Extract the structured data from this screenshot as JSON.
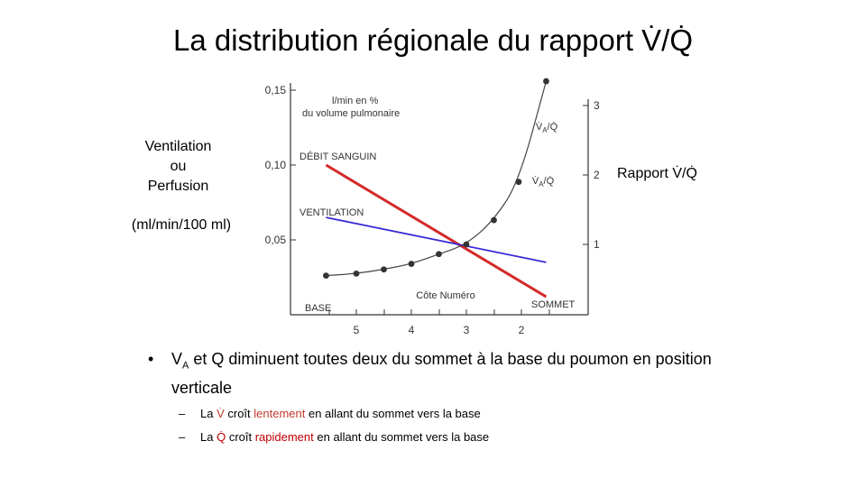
{
  "slide": {
    "title": "La distribution régionale du rapport V̇/Q̇"
  },
  "left_axis_label": {
    "line1": "Ventilation",
    "line2": "ou",
    "line3": "Perfusion",
    "unit": "(ml/min/100 ml)"
  },
  "right_axis_label": "Rapport V̇/Q̇",
  "bullets": {
    "main_a": "V",
    "main_sub": "A",
    "main_b": " et Q diminuent toutes deux du sommet à la base du poumon en position verticale",
    "sub1": {
      "a": "La ",
      "symbol": "V̇",
      "b": " croît ",
      "emph": "lentement",
      "c": " en allant du sommet vers la base"
    },
    "sub2": {
      "a": "La ",
      "symbol": "Q̇",
      "b": " croît ",
      "emph": "rapidement",
      "c": " en allant du sommet vers la base"
    }
  },
  "chart_data": {
    "type": "line",
    "left_axis_title": [
      "l/min en %",
      "du volume pulmonaire"
    ],
    "left_ticks": [
      "0,15",
      "0,10",
      "0,05"
    ],
    "right_ticks": [
      "3",
      "2",
      "1"
    ],
    "x_ticks": [
      "5",
      "4",
      "3",
      "2"
    ],
    "xlabel": "Côte Numéro",
    "x_left_label": "BASE",
    "x_right_label": "SOMMET",
    "ylim_left": [
      0.0,
      0.15
    ],
    "ylim_right": [
      0.0,
      3.0
    ],
    "xlim": [
      6.0,
      1.0
    ],
    "colors": {
      "debit": "#d42a2a",
      "ventilation": "#3a2ad6",
      "ratio": "#444444"
    },
    "series": [
      {
        "name": "DÉBIT SANGUIN",
        "axis": "left",
        "x": [
          5.55,
          1.55
        ],
        "y": [
          0.1,
          0.012
        ]
      },
      {
        "name": "VENTILATION",
        "axis": "left",
        "x": [
          5.55,
          1.55
        ],
        "y": [
          0.065,
          0.035
        ]
      },
      {
        "name": "V̇A/Q̇",
        "axis": "right",
        "x": [
          5.55,
          5.0,
          4.5,
          4.0,
          3.5,
          3.0,
          2.5,
          2.05,
          1.55
        ],
        "y": [
          0.55,
          0.58,
          0.64,
          0.72,
          0.86,
          1.0,
          1.35,
          1.9,
          3.35
        ]
      }
    ],
    "series_labels": [
      "DÉBIT SANGUIN",
      "VENTILATION",
      "V̇A/Q̇",
      "V̇A/Q̇"
    ]
  }
}
